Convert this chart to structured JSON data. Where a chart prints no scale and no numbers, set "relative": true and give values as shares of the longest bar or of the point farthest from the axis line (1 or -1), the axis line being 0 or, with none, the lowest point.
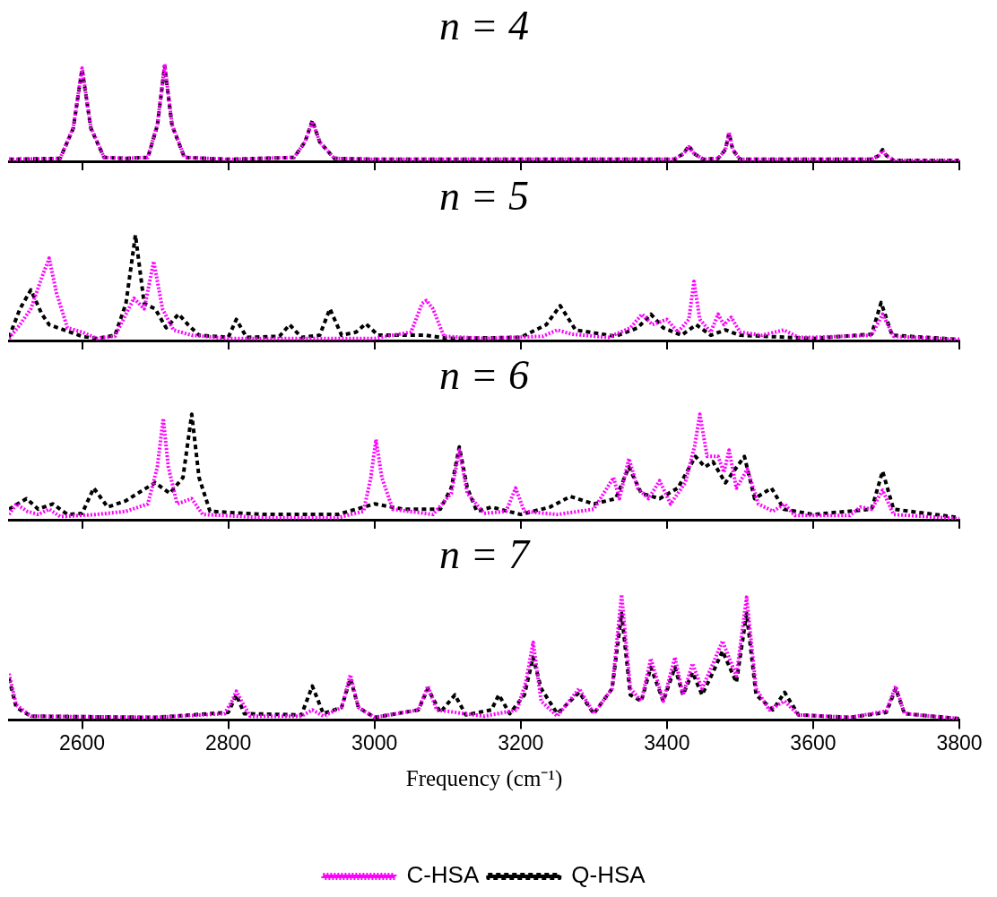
{
  "chart_data": [
    {
      "type": "line",
      "title": "n = 4",
      "relative": true,
      "xlim": [
        2500,
        3800
      ],
      "xticks": [
        2600,
        2800,
        3000,
        3200,
        3400,
        3600,
        3800
      ],
      "tick_labels": false,
      "legend": false,
      "marker": "none",
      "series": [
        {
          "color": "#ff00ff",
          "line_style": "dotted",
          "x": [
            2500,
            2570,
            2588,
            2600,
            2612,
            2630,
            2660,
            2690,
            2703,
            2713,
            2723,
            2740,
            2800,
            2890,
            2905,
            2915,
            2925,
            2945,
            3000,
            3410,
            3423,
            3430,
            3437,
            3450,
            3470,
            3480,
            3485,
            3490,
            3500,
            3680,
            3690,
            3695,
            3700,
            3710,
            3800
          ],
          "values": [
            0.02,
            0.03,
            0.35,
            0.96,
            0.35,
            0.04,
            0.03,
            0.04,
            0.38,
            1.0,
            0.38,
            0.04,
            0.02,
            0.04,
            0.2,
            0.41,
            0.2,
            0.03,
            0.02,
            0.02,
            0.08,
            0.15,
            0.08,
            0.02,
            0.03,
            0.12,
            0.3,
            0.12,
            0.02,
            0.02,
            0.06,
            0.11,
            0.06,
            0.01,
            0.01
          ]
        },
        {
          "color": "#000000",
          "line_style": "dashed",
          "x": [
            2500,
            2570,
            2588,
            2600,
            2612,
            2630,
            2660,
            2690,
            2703,
            2713,
            2723,
            2740,
            2800,
            2890,
            2905,
            2915,
            2925,
            2945,
            3000,
            3410,
            3423,
            3430,
            3437,
            3450,
            3470,
            3480,
            3485,
            3490,
            3500,
            3680,
            3690,
            3695,
            3700,
            3710,
            3800
          ],
          "values": [
            0.02,
            0.03,
            0.34,
            0.95,
            0.34,
            0.04,
            0.03,
            0.04,
            0.37,
            0.98,
            0.37,
            0.04,
            0.02,
            0.04,
            0.2,
            0.42,
            0.2,
            0.03,
            0.02,
            0.02,
            0.08,
            0.16,
            0.08,
            0.02,
            0.03,
            0.12,
            0.29,
            0.12,
            0.02,
            0.02,
            0.06,
            0.12,
            0.06,
            0.01,
            0.01
          ]
        }
      ]
    },
    {
      "type": "line",
      "title": "n = 5",
      "relative": true,
      "xlim": [
        2500,
        3800
      ],
      "xticks": [
        2600,
        2800,
        3000,
        3200,
        3400,
        3600,
        3800
      ],
      "tick_labels": false,
      "legend": false,
      "marker": "none",
      "series": [
        {
          "color": "#ff00ff",
          "line_style": "dotted",
          "x": [
            2500,
            2515,
            2530,
            2545,
            2555,
            2565,
            2580,
            2600,
            2620,
            2645,
            2660,
            2671,
            2685,
            2698,
            2710,
            2725,
            2750,
            2800,
            2900,
            3000,
            3050,
            3065,
            3071,
            3080,
            3095,
            3150,
            3230,
            3250,
            3270,
            3320,
            3350,
            3366,
            3380,
            3400,
            3415,
            3430,
            3437,
            3445,
            3460,
            3470,
            3478,
            3488,
            3500,
            3530,
            3560,
            3580,
            3600,
            3680,
            3695,
            3710,
            3800
          ],
          "values": [
            0.02,
            0.15,
            0.3,
            0.6,
            0.78,
            0.45,
            0.12,
            0.08,
            0.02,
            0.04,
            0.25,
            0.4,
            0.3,
            0.75,
            0.3,
            0.1,
            0.05,
            0.02,
            0.02,
            0.02,
            0.08,
            0.35,
            0.38,
            0.3,
            0.04,
            0.02,
            0.04,
            0.1,
            0.06,
            0.03,
            0.12,
            0.25,
            0.15,
            0.2,
            0.08,
            0.2,
            0.56,
            0.2,
            0.08,
            0.25,
            0.15,
            0.22,
            0.08,
            0.05,
            0.1,
            0.03,
            0.03,
            0.05,
            0.25,
            0.04,
            0.01
          ]
        },
        {
          "color": "#000000",
          "line_style": "dashed",
          "x": [
            2500,
            2515,
            2530,
            2545,
            2555,
            2575,
            2600,
            2620,
            2645,
            2660,
            2673,
            2685,
            2700,
            2715,
            2732,
            2745,
            2760,
            2800,
            2811,
            2825,
            2870,
            2884,
            2900,
            2925,
            2939,
            2955,
            2975,
            2988,
            3005,
            3070,
            3100,
            3200,
            3235,
            3254,
            3275,
            3330,
            3360,
            3378,
            3395,
            3420,
            3440,
            3460,
            3480,
            3500,
            3600,
            3680,
            3693,
            3708,
            3800
          ],
          "values": [
            0.03,
            0.3,
            0.48,
            0.25,
            0.15,
            0.1,
            0.04,
            0.02,
            0.05,
            0.35,
            1.0,
            0.35,
            0.3,
            0.12,
            0.25,
            0.15,
            0.05,
            0.03,
            0.2,
            0.03,
            0.04,
            0.15,
            0.03,
            0.05,
            0.3,
            0.05,
            0.08,
            0.16,
            0.05,
            0.05,
            0.02,
            0.03,
            0.15,
            0.33,
            0.1,
            0.04,
            0.12,
            0.25,
            0.12,
            0.05,
            0.15,
            0.05,
            0.1,
            0.05,
            0.02,
            0.06,
            0.36,
            0.05,
            0.01
          ]
        }
      ]
    },
    {
      "type": "line",
      "title": "n = 6",
      "relative": true,
      "xlim": [
        2500,
        3800
      ],
      "xticks": [
        2600,
        2800,
        3000,
        3200,
        3400,
        3600,
        3800
      ],
      "tick_labels": false,
      "legend": false,
      "marker": "none",
      "series": [
        {
          "color": "#ff00ff",
          "line_style": "dotted",
          "x": [
            2500,
            2510,
            2525,
            2540,
            2555,
            2570,
            2620,
            2660,
            2690,
            2703,
            2711,
            2718,
            2730,
            2750,
            2765,
            2850,
            2950,
            2985,
            2995,
            3002,
            3010,
            3025,
            3080,
            3105,
            3116,
            3127,
            3150,
            3180,
            3193,
            3205,
            3250,
            3300,
            3327,
            3335,
            3348,
            3360,
            3375,
            3390,
            3405,
            3425,
            3438,
            3445,
            3455,
            3470,
            3478,
            3485,
            3495,
            3510,
            3525,
            3545,
            3561,
            3575,
            3650,
            3665,
            3680,
            3695,
            3710,
            3800
          ],
          "values": [
            0.05,
            0.15,
            0.08,
            0.05,
            0.1,
            0.03,
            0.05,
            0.08,
            0.15,
            0.5,
            0.96,
            0.5,
            0.15,
            0.2,
            0.05,
            0.02,
            0.02,
            0.08,
            0.4,
            0.76,
            0.4,
            0.1,
            0.05,
            0.25,
            0.66,
            0.25,
            0.06,
            0.08,
            0.3,
            0.08,
            0.05,
            0.1,
            0.4,
            0.2,
            0.58,
            0.3,
            0.2,
            0.37,
            0.15,
            0.35,
            0.7,
            1.0,
            0.6,
            0.6,
            0.45,
            0.66,
            0.3,
            0.48,
            0.15,
            0.08,
            0.15,
            0.04,
            0.04,
            0.12,
            0.1,
            0.28,
            0.05,
            0.01
          ]
        },
        {
          "color": "#000000",
          "line_style": "dashed",
          "x": [
            2500,
            2524,
            2540,
            2560,
            2580,
            2600,
            2616,
            2635,
            2660,
            2683,
            2700,
            2720,
            2738,
            2750,
            2760,
            2775,
            2850,
            2950,
            3000,
            3040,
            3090,
            3105,
            3116,
            3127,
            3140,
            3160,
            3200,
            3240,
            3268,
            3300,
            3330,
            3348,
            3365,
            3390,
            3415,
            3439,
            3452,
            3463,
            3480,
            3506,
            3520,
            3543,
            3560,
            3600,
            3680,
            3695,
            3710,
            3800
          ],
          "values": [
            0.1,
            0.2,
            0.1,
            0.15,
            0.05,
            0.06,
            0.3,
            0.12,
            0.18,
            0.28,
            0.35,
            0.25,
            0.4,
            1.0,
            0.4,
            0.08,
            0.05,
            0.05,
            0.15,
            0.1,
            0.1,
            0.3,
            0.69,
            0.3,
            0.08,
            0.12,
            0.05,
            0.12,
            0.22,
            0.15,
            0.2,
            0.5,
            0.25,
            0.2,
            0.3,
            0.6,
            0.5,
            0.55,
            0.35,
            0.6,
            0.2,
            0.3,
            0.1,
            0.05,
            0.1,
            0.46,
            0.1,
            0.02
          ]
        }
      ]
    },
    {
      "type": "line",
      "title": "n = 7",
      "xlabel": "Frequency (cm⁻¹)",
      "relative": true,
      "xlim": [
        2500,
        3800
      ],
      "xticks": [
        2600,
        2800,
        3000,
        3200,
        3400,
        3600,
        3800
      ],
      "tick_labels": "x",
      "legend": "bottom",
      "marker": "none",
      "series": [
        {
          "name": "C-HSA",
          "color": "#ff00ff",
          "line_style": "dotted",
          "x": [
            2500,
            2510,
            2530,
            2700,
            2795,
            2805,
            2811,
            2818,
            2830,
            2900,
            2915,
            2930,
            2955,
            2967,
            2978,
            3000,
            3060,
            3073,
            3085,
            3150,
            3195,
            3207,
            3217,
            3228,
            3250,
            3280,
            3300,
            3325,
            3338,
            3350,
            3365,
            3378,
            3395,
            3411,
            3422,
            3435,
            3448,
            3463,
            3476,
            3495,
            3509,
            3522,
            3540,
            3561,
            3580,
            3650,
            3700,
            3713,
            3725,
            3800
          ],
          "values": [
            0.37,
            0.12,
            0.03,
            0.02,
            0.05,
            0.15,
            0.23,
            0.15,
            0.03,
            0.03,
            0.08,
            0.03,
            0.1,
            0.36,
            0.1,
            0.02,
            0.08,
            0.27,
            0.08,
            0.03,
            0.08,
            0.3,
            0.62,
            0.15,
            0.03,
            0.25,
            0.05,
            0.25,
            1.0,
            0.25,
            0.15,
            0.49,
            0.15,
            0.5,
            0.2,
            0.45,
            0.25,
            0.45,
            0.63,
            0.35,
            0.98,
            0.25,
            0.08,
            0.15,
            0.04,
            0.02,
            0.07,
            0.27,
            0.05,
            0.01
          ]
        },
        {
          "name": "Q-HSA",
          "color": "#000000",
          "line_style": "dashed",
          "x": [
            2500,
            2510,
            2530,
            2700,
            2800,
            2811,
            2822,
            2900,
            2915,
            2930,
            2955,
            2967,
            2978,
            3000,
            3060,
            3073,
            3090,
            3110,
            3125,
            3160,
            3170,
            3185,
            3205,
            3217,
            3228,
            3250,
            3280,
            3300,
            3325,
            3338,
            3350,
            3365,
            3378,
            3395,
            3411,
            3422,
            3435,
            3448,
            3463,
            3476,
            3495,
            3509,
            3522,
            3545,
            3561,
            3580,
            3650,
            3700,
            3713,
            3725,
            3800
          ],
          "values": [
            0.33,
            0.1,
            0.03,
            0.02,
            0.06,
            0.2,
            0.05,
            0.04,
            0.27,
            0.05,
            0.1,
            0.33,
            0.1,
            0.02,
            0.08,
            0.25,
            0.06,
            0.2,
            0.04,
            0.08,
            0.2,
            0.05,
            0.2,
            0.5,
            0.25,
            0.05,
            0.22,
            0.05,
            0.25,
            0.85,
            0.2,
            0.15,
            0.42,
            0.15,
            0.42,
            0.2,
            0.38,
            0.2,
            0.38,
            0.55,
            0.3,
            0.85,
            0.2,
            0.08,
            0.22,
            0.04,
            0.02,
            0.06,
            0.25,
            0.05,
            0.01
          ]
        }
      ]
    }
  ]
}
